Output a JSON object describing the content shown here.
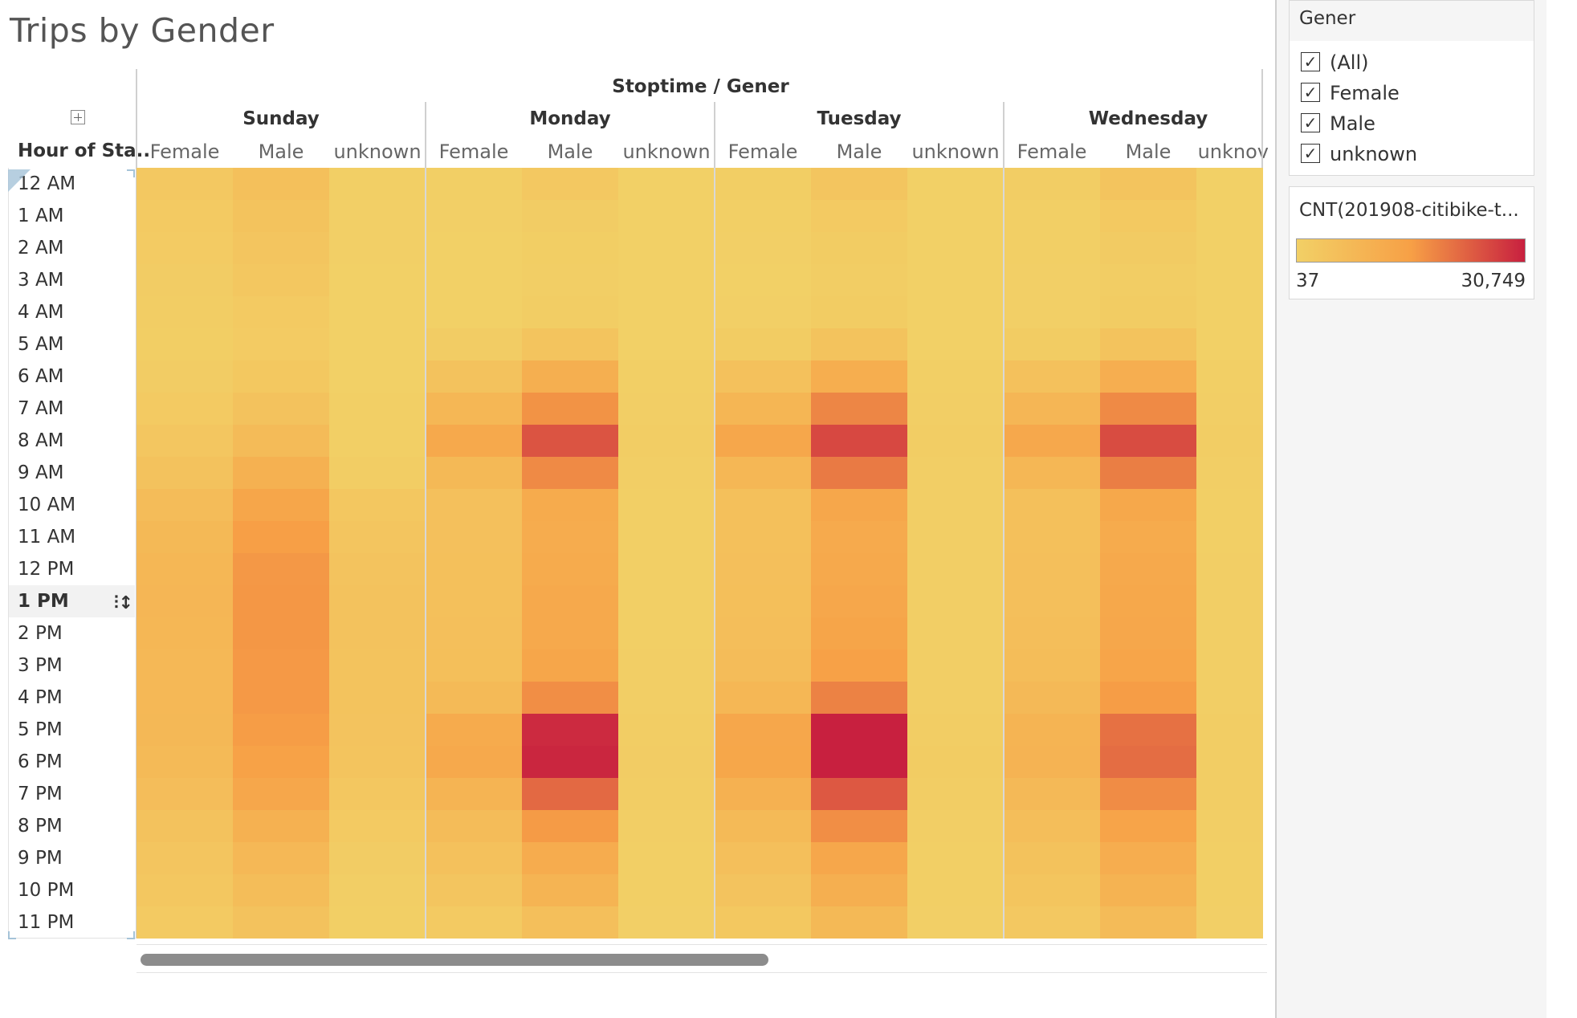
{
  "page": {
    "title": "Trips by Gender"
  },
  "colors": {
    "low": "#f2d066",
    "mid": "#f7a046",
    "high": "#c8203f"
  },
  "chart_data": {
    "type": "heatmap",
    "title": "Trips by Gender",
    "column_header": "Stoptime / Gener",
    "row_header": "Hour of Sta..",
    "days": [
      "Sunday",
      "Monday",
      "Tuesday",
      "Wednesday"
    ],
    "genders": [
      "Female",
      "Male",
      "unknown"
    ],
    "last_gender_visible": "unknov",
    "rows": [
      "12 AM",
      "1 AM",
      "2 AM",
      "3 AM",
      "4 AM",
      "5 AM",
      "6 AM",
      "7 AM",
      "8 AM",
      "9 AM",
      "10 AM",
      "11 AM",
      "12 PM",
      "1 PM",
      "2 PM",
      "3 PM",
      "4 PM",
      "5 PM",
      "6 PM",
      "7 PM",
      "8 PM",
      "9 PM",
      "10 PM",
      "11 PM"
    ],
    "color_range": [
      37,
      30749
    ],
    "columns": [
      {
        "day": "Sunday",
        "gender": "Female",
        "values": [
          2500,
          2000,
          1600,
          1200,
          900,
          800,
          1200,
          2000,
          3100,
          4500,
          6500,
          7500,
          8000,
          8200,
          8000,
          7800,
          7800,
          7600,
          7200,
          6000,
          4500,
          3500,
          2800,
          2000
        ]
      },
      {
        "day": "Sunday",
        "gender": "Male",
        "values": [
          5200,
          4300,
          3600,
          2800,
          1900,
          1600,
          2700,
          4500,
          6800,
          10000,
          13500,
          15500,
          16300,
          16500,
          16500,
          16200,
          16200,
          15800,
          14800,
          13000,
          10000,
          7800,
          6200,
          4500
        ]
      },
      {
        "day": "Sunday",
        "gender": "unknown",
        "values": [
          300,
          250,
          220,
          150,
          100,
          80,
          150,
          300,
          500,
          1000,
          2800,
          3600,
          4100,
          4400,
          4400,
          4300,
          4200,
          4100,
          3800,
          3000,
          1900,
          1200,
          700,
          500
        ]
      },
      {
        "day": "Monday",
        "gender": "Female",
        "values": [
          500,
          250,
          150,
          100,
          150,
          1200,
          4500,
          8000,
          12500,
          7500,
          5000,
          5000,
          5200,
          5300,
          5400,
          5600,
          7000,
          12000,
          12500,
          9000,
          6500,
          4800,
          3500,
          2000
        ]
      },
      {
        "day": "Monday",
        "gender": "Male",
        "values": [
          2500,
          1200,
          800,
          700,
          1000,
          4000,
          10500,
          17000,
          24500,
          18000,
          12000,
          11500,
          12000,
          12400,
          12600,
          13500,
          17500,
          29500,
          30000,
          22000,
          16000,
          11500,
          9000,
          5500
        ]
      },
      {
        "day": "Monday",
        "gender": "unknown",
        "values": [
          100,
          60,
          40,
          37,
          40,
          100,
          300,
          600,
          900,
          700,
          500,
          500,
          500,
          500,
          500,
          550,
          700,
          1100,
          1200,
          900,
          600,
          400,
          300,
          200
        ]
      },
      {
        "day": "Tuesday",
        "gender": "Female",
        "values": [
          800,
          400,
          250,
          150,
          200,
          1400,
          4800,
          8500,
          13000,
          8000,
          5200,
          5300,
          5500,
          5600,
          5900,
          6500,
          8000,
          13000,
          13300,
          10000,
          7000,
          5400,
          4100,
          2700
        ]
      },
      {
        "day": "Tuesday",
        "gender": "Male",
        "values": [
          3600,
          2100,
          1400,
          900,
          1300,
          4300,
          11000,
          18500,
          26000,
          20000,
          13000,
          12200,
          12600,
          13200,
          13800,
          15000,
          19000,
          30700,
          30749,
          24000,
          17500,
          13000,
          10500,
          7500
        ]
      },
      {
        "day": "Tuesday",
        "gender": "unknown",
        "values": [
          120,
          60,
          40,
          37,
          40,
          120,
          330,
          650,
          950,
          750,
          520,
          520,
          540,
          540,
          560,
          600,
          750,
          1150,
          1250,
          950,
          650,
          450,
          330,
          220
        ]
      },
      {
        "day": "Wednesday",
        "gender": "Female",
        "values": [
          900,
          500,
          300,
          200,
          250,
          1400,
          4700,
          8300,
          12700,
          8000,
          5100,
          5200,
          5400,
          5500,
          5700,
          6200,
          7400,
          9000,
          9200,
          7300,
          5700,
          4600,
          3700,
          2600
        ]
      },
      {
        "day": "Wednesday",
        "gender": "Male",
        "values": [
          3800,
          2200,
          1500,
          1000,
          1300,
          4200,
          10800,
          18000,
          25500,
          19500,
          12800,
          12000,
          12400,
          12800,
          13100,
          13900,
          15800,
          21000,
          21500,
          17800,
          14000,
          11200,
          9400,
          6800
        ]
      },
      {
        "day": "Wednesday",
        "gender": "unknown",
        "values": [
          120,
          70,
          40,
          37,
          40,
          120,
          320,
          620,
          920,
          720,
          500,
          500,
          520,
          520,
          540,
          580,
          700,
          1000,
          1100,
          850,
          620,
          430,
          320,
          210
        ]
      }
    ],
    "highlighted_row": "1 PM"
  },
  "filter": {
    "title": "Gener",
    "items": [
      {
        "label": "(All)",
        "checked": true
      },
      {
        "label": "Female",
        "checked": true
      },
      {
        "label": "Male",
        "checked": true
      },
      {
        "label": "unknown",
        "checked": true
      }
    ]
  },
  "legend": {
    "title": "CNT(201908-citibike-t...",
    "min_label": "37",
    "max_label": "30,749"
  }
}
